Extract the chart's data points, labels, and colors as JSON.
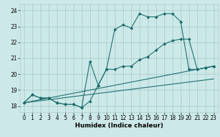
{
  "xlabel": "Humidex (Indice chaleur)",
  "bg_color": "#cce8e8",
  "grid_color": "#aacccc",
  "line_color": "#1a6b6b",
  "xlim": [
    -0.5,
    23.5
  ],
  "ylim": [
    17.6,
    24.4
  ],
  "xticks": [
    0,
    1,
    2,
    3,
    4,
    5,
    6,
    7,
    8,
    9,
    10,
    11,
    12,
    13,
    14,
    15,
    16,
    17,
    18,
    19,
    20,
    21,
    22,
    23
  ],
  "yticks": [
    18,
    19,
    20,
    21,
    22,
    23,
    24
  ],
  "series": [
    {
      "x": [
        0,
        1,
        2,
        3,
        4,
        5,
        6,
        7,
        8,
        9,
        10,
        11,
        12,
        13,
        14,
        15,
        16,
        17,
        18,
        19,
        20,
        21,
        22,
        23
      ],
      "y": [
        18.2,
        18.7,
        18.5,
        18.5,
        18.2,
        18.1,
        18.1,
        17.9,
        18.3,
        19.3,
        20.3,
        22.8,
        23.1,
        22.9,
        23.8,
        23.6,
        23.6,
        23.8,
        23.8,
        23.3,
        20.3,
        20.3,
        20.4,
        20.5
      ],
      "has_markers": true
    },
    {
      "x": [
        0,
        1,
        2,
        3,
        4,
        5,
        6,
        7,
        8,
        9,
        10,
        11,
        12,
        13,
        14,
        15,
        16,
        17,
        18,
        19,
        20,
        21,
        22,
        23
      ],
      "y": [
        18.2,
        18.7,
        18.5,
        18.5,
        18.2,
        18.1,
        18.1,
        17.9,
        20.8,
        19.3,
        20.3,
        20.3,
        20.5,
        20.5,
        20.9,
        21.1,
        21.5,
        21.9,
        22.1,
        22.2,
        22.2,
        20.3,
        20.4,
        20.5
      ],
      "has_markers": true
    },
    {
      "x": [
        0,
        23
      ],
      "y": [
        18.2,
        20.5
      ],
      "has_markers": false
    },
    {
      "x": [
        0,
        23
      ],
      "y": [
        18.2,
        19.7
      ],
      "has_markers": false
    }
  ]
}
